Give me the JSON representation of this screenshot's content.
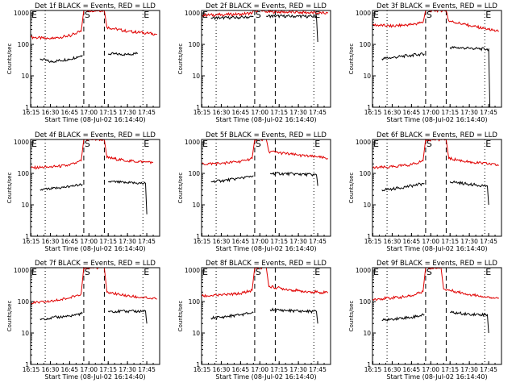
{
  "figure": {
    "xlabel": "Start Time (08-Jul-02 16:14:40)",
    "ylabel": "Counts/sec"
  },
  "axes": {
    "x_ticks": [
      "16:15",
      "16:30",
      "16:45",
      "17:00",
      "17:15",
      "17:30",
      "17:45"
    ],
    "y_ticks": [
      "1",
      "10",
      "100",
      "1000"
    ],
    "y_scale": "log",
    "ylim": [
      1,
      1200
    ],
    "xlim": [
      "16:14:40",
      "17:55"
    ]
  },
  "markers": [
    {
      "label": "E",
      "time": "16:14:40",
      "style": "dotted"
    },
    {
      "label": "S",
      "time": "16:56",
      "style": "dashed"
    },
    {
      "label": "E",
      "time": "17:42",
      "style": "dotted"
    }
  ],
  "reference_lines": [
    {
      "time": "16:26",
      "style": "dotted"
    },
    {
      "time": "17:12",
      "style": "dashed"
    }
  ],
  "colors": {
    "events": "#000000",
    "lld": "#e00000"
  },
  "chart_data": [
    {
      "type": "line",
      "title": "Det 1f BLACK = Events, RED = LLD",
      "y_scale": "log",
      "series": [
        {
          "color": "#e00000",
          "points": [
            [
              "16:15",
              170
            ],
            [
              "16:30",
              150
            ],
            [
              "16:45",
              190
            ],
            [
              "16:54",
              260
            ],
            [
              "16:56",
              1200
            ],
            [
              "17:12",
              1200
            ],
            [
              "17:14",
              350
            ],
            [
              "17:30",
              260
            ],
            [
              "17:45",
              230
            ],
            [
              "17:53",
              210
            ]
          ]
        },
        {
          "color": "#000000",
          "points": [
            [
              "16:22",
              35
            ],
            [
              "16:30",
              28
            ],
            [
              "16:45",
              34
            ],
            [
              "16:55",
              45
            ],
            [
              "16:56",
              null
            ],
            [
              "17:15",
              50
            ],
            [
              "17:30",
              48
            ],
            [
              "17:38",
              52
            ]
          ]
        }
      ]
    },
    {
      "type": "line",
      "title": "Det 2f BLACK = Events, RED = LLD",
      "y_scale": "log",
      "series": [
        {
          "color": "#e00000",
          "points": [
            [
              "16:15",
              850
            ],
            [
              "16:30",
              880
            ],
            [
              "16:45",
              920
            ],
            [
              "16:54",
              1000
            ],
            [
              "16:56",
              1200
            ],
            [
              "17:03",
              1200
            ],
            [
              "17:05",
              1100
            ],
            [
              "17:30",
              1050
            ],
            [
              "17:45",
              1000
            ],
            [
              "17:53",
              980
            ]
          ]
        },
        {
          "color": "#000000",
          "points": [
            [
              "16:22",
              700
            ],
            [
              "16:30",
              700
            ],
            [
              "16:45",
              720
            ],
            [
              "16:55",
              760
            ],
            [
              "16:56",
              null
            ],
            [
              "17:05",
              800
            ],
            [
              "17:30",
              780
            ],
            [
              "17:44",
              780
            ],
            [
              "17:45",
              120
            ]
          ]
        }
      ]
    },
    {
      "type": "line",
      "title": "Det 3f BLACK = Events, RED = LLD",
      "y_scale": "log",
      "series": [
        {
          "color": "#e00000",
          "points": [
            [
              "16:15",
              420
            ],
            [
              "16:30",
              380
            ],
            [
              "16:45",
              430
            ],
            [
              "16:54",
              500
            ],
            [
              "16:56",
              1200
            ],
            [
              "17:12",
              1200
            ],
            [
              "17:14",
              560
            ],
            [
              "17:30",
              400
            ],
            [
              "17:45",
              300
            ],
            [
              "17:53",
              260
            ]
          ]
        },
        {
          "color": "#000000",
          "points": [
            [
              "16:22",
              35
            ],
            [
              "16:30",
              38
            ],
            [
              "16:45",
              45
            ],
            [
              "16:55",
              50
            ],
            [
              "16:56",
              null
            ],
            [
              "17:15",
              80
            ],
            [
              "17:30",
              75
            ],
            [
              "17:45",
              70
            ],
            [
              "17:46",
              1
            ]
          ]
        }
      ]
    },
    {
      "type": "line",
      "title": "Det 4f BLACK = Events, RED = LLD",
      "y_scale": "log",
      "series": [
        {
          "color": "#e00000",
          "points": [
            [
              "16:15",
              150
            ],
            [
              "16:30",
              160
            ],
            [
              "16:45",
              180
            ],
            [
              "16:54",
              250
            ],
            [
              "16:56",
              1200
            ],
            [
              "17:12",
              1200
            ],
            [
              "17:14",
              320
            ],
            [
              "17:30",
              250
            ],
            [
              "17:45",
              230
            ],
            [
              "17:50",
              220
            ]
          ]
        },
        {
          "color": "#000000",
          "points": [
            [
              "16:22",
              30
            ],
            [
              "16:30",
              32
            ],
            [
              "16:45",
              38
            ],
            [
              "16:55",
              45
            ],
            [
              "16:56",
              null
            ],
            [
              "17:15",
              55
            ],
            [
              "17:30",
              50
            ],
            [
              "17:44",
              48
            ],
            [
              "17:45",
              5
            ]
          ]
        }
      ]
    },
    {
      "type": "line",
      "title": "Det 5f BLACK = Events, RED = LLD",
      "y_scale": "log",
      "series": [
        {
          "color": "#e00000",
          "points": [
            [
              "16:15",
              200
            ],
            [
              "16:30",
              210
            ],
            [
              "16:45",
              240
            ],
            [
              "16:54",
              300
            ],
            [
              "16:56",
              1200
            ],
            [
              "17:05",
              1200
            ],
            [
              "17:07",
              500
            ],
            [
              "17:30",
              380
            ],
            [
              "17:45",
              330
            ],
            [
              "17:53",
              300
            ]
          ]
        },
        {
          "color": "#000000",
          "points": [
            [
              "16:22",
              55
            ],
            [
              "16:30",
              58
            ],
            [
              "16:45",
              70
            ],
            [
              "16:55",
              85
            ],
            [
              "16:56",
              null
            ],
            [
              "17:08",
              100
            ],
            [
              "17:30",
              95
            ],
            [
              "17:44",
              90
            ],
            [
              "17:45",
              40
            ]
          ]
        }
      ]
    },
    {
      "type": "line",
      "title": "Det 6f BLACK = Events, RED = LLD",
      "y_scale": "log",
      "series": [
        {
          "color": "#e00000",
          "points": [
            [
              "16:15",
              150
            ],
            [
              "16:30",
              160
            ],
            [
              "16:45",
              190
            ],
            [
              "16:54",
              250
            ],
            [
              "16:56",
              1200
            ],
            [
              "17:12",
              1200
            ],
            [
              "17:14",
              300
            ],
            [
              "17:30",
              230
            ],
            [
              "17:45",
              200
            ],
            [
              "17:53",
              180
            ]
          ]
        },
        {
          "color": "#000000",
          "points": [
            [
              "16:22",
              30
            ],
            [
              "16:30",
              32
            ],
            [
              "16:45",
              40
            ],
            [
              "16:55",
              48
            ],
            [
              "16:56",
              null
            ],
            [
              "17:15",
              55
            ],
            [
              "17:30",
              45
            ],
            [
              "17:44",
              40
            ],
            [
              "17:45",
              10
            ]
          ]
        }
      ]
    },
    {
      "type": "line",
      "title": "Det 7f BLACK = Events, RED = LLD",
      "y_scale": "log",
      "series": [
        {
          "color": "#e00000",
          "points": [
            [
              "16:15",
              90
            ],
            [
              "16:30",
              100
            ],
            [
              "16:45",
              130
            ],
            [
              "16:54",
              180
            ],
            [
              "16:56",
              1200
            ],
            [
              "17:12",
              1200
            ],
            [
              "17:14",
              200
            ],
            [
              "17:30",
              150
            ],
            [
              "17:45",
              130
            ],
            [
              "17:53",
              120
            ]
          ]
        },
        {
          "color": "#000000",
          "points": [
            [
              "16:22",
              28
            ],
            [
              "16:30",
              30
            ],
            [
              "16:45",
              35
            ],
            [
              "16:55",
              42
            ],
            [
              "16:56",
              null
            ],
            [
              "17:15",
              50
            ],
            [
              "17:30",
              48
            ],
            [
              "17:44",
              50
            ],
            [
              "17:45",
              20
            ]
          ]
        }
      ]
    },
    {
      "type": "line",
      "title": "Det 8f BLACK = Events, RED = LLD",
      "y_scale": "log",
      "series": [
        {
          "color": "#e00000",
          "points": [
            [
              "16:15",
              150
            ],
            [
              "16:30",
              160
            ],
            [
              "16:45",
              180
            ],
            [
              "16:54",
              230
            ],
            [
              "16:56",
              1200
            ],
            [
              "17:05",
              1200
            ],
            [
              "17:07",
              300
            ],
            [
              "17:30",
              220
            ],
            [
              "17:45",
              200
            ],
            [
              "17:53",
              190
            ]
          ]
        },
        {
          "color": "#000000",
          "points": [
            [
              "16:22",
              30
            ],
            [
              "16:30",
              32
            ],
            [
              "16:45",
              38
            ],
            [
              "16:55",
              45
            ],
            [
              "16:56",
              null
            ],
            [
              "17:08",
              55
            ],
            [
              "17:30",
              50
            ],
            [
              "17:44",
              48
            ],
            [
              "17:45",
              20
            ]
          ]
        }
      ]
    },
    {
      "type": "line",
      "title": "Det 9f BLACK = Events, RED = LLD",
      "y_scale": "log",
      "series": [
        {
          "color": "#e00000",
          "points": [
            [
              "16:15",
              120
            ],
            [
              "16:30",
              130
            ],
            [
              "16:45",
              150
            ],
            [
              "16:54",
              210
            ],
            [
              "16:56",
              1200
            ],
            [
              "17:08",
              1200
            ],
            [
              "17:10",
              250
            ],
            [
              "17:30",
              170
            ],
            [
              "17:45",
              140
            ],
            [
              "17:53",
              130
            ]
          ]
        },
        {
          "color": "#000000",
          "points": [
            [
              "16:22",
              25
            ],
            [
              "16:30",
              28
            ],
            [
              "16:45",
              32
            ],
            [
              "16:55",
              38
            ],
            [
              "16:56",
              null
            ],
            [
              "17:15",
              45
            ],
            [
              "17:30",
              40
            ],
            [
              "17:44",
              38
            ],
            [
              "17:45",
              10
            ]
          ]
        }
      ]
    }
  ]
}
